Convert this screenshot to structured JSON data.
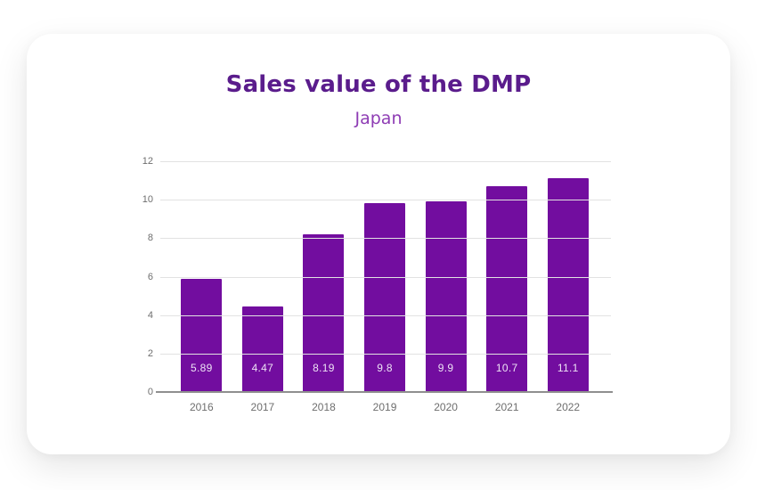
{
  "header": {
    "title": "Sales value of the DMP",
    "subtitle": "Japan"
  },
  "chart_data": {
    "type": "bar",
    "title": "Sales value of the DMP",
    "subtitle": "Japan",
    "categories": [
      "2016",
      "2017",
      "2018",
      "2019",
      "2020",
      "2021",
      "2022"
    ],
    "values": [
      5.89,
      4.47,
      8.19,
      9.8,
      9.9,
      10.7,
      11.1
    ],
    "value_labels": [
      "5.89",
      "4.47",
      "8.19",
      "9.8",
      "9.9",
      "10.7",
      "11.1"
    ],
    "xlabel": "",
    "ylabel": "",
    "y_ticks": [
      0,
      2,
      4,
      6,
      8,
      10,
      12
    ],
    "ylim": [
      0,
      12
    ],
    "grid": true,
    "legend": "none",
    "colors": {
      "bar": "#720D9F",
      "title": "#5A1C8C",
      "subtitle": "#8E3CB4",
      "axis_text": "#6E6E6E",
      "gridline": "#E2E2E2",
      "baseline": "#8F8F8F",
      "value_label": "#EDE2F5",
      "card_background": "#FFFFFF",
      "page_background": "#FFFFFF"
    }
  }
}
